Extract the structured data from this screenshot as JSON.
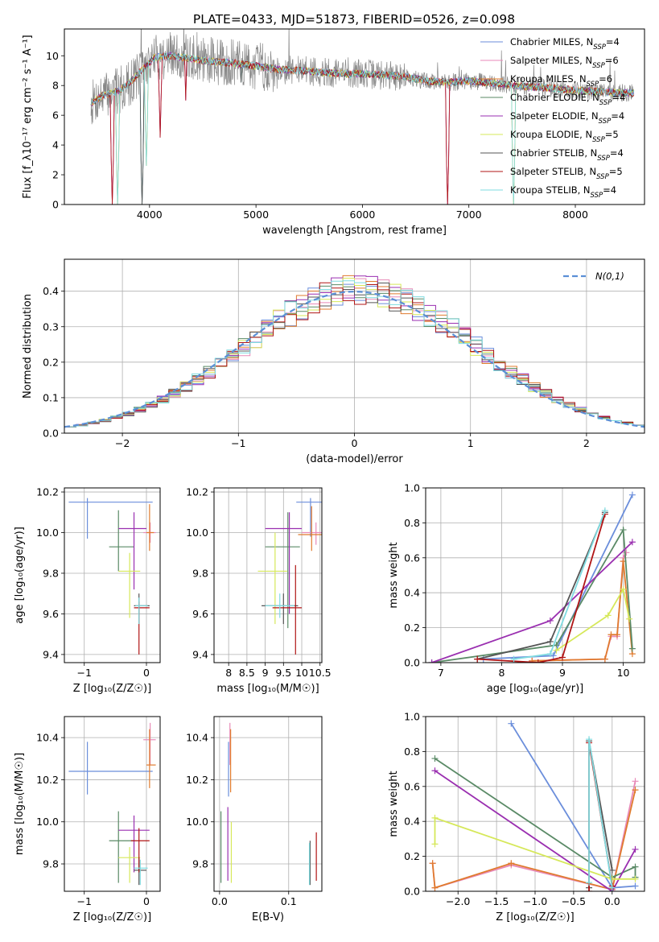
{
  "figure_title": "PLATE=0433, MJD=51873, FIBERID=0526, z=0.098",
  "models": [
    {
      "name": "Chabrier MILES",
      "n_ssp": "4",
      "color": "#6b8edb"
    },
    {
      "name": "Salpeter MILES",
      "n_ssp": "6",
      "color": "#e88ab8"
    },
    {
      "name": "Kroupa MILES",
      "n_ssp": "6",
      "color": "#e07b2e"
    },
    {
      "name": "Chabrier ELODIE",
      "n_ssp": "4",
      "color": "#5a8a66"
    },
    {
      "name": "Salpeter ELODIE",
      "n_ssp": "4",
      "color": "#9a2fb0"
    },
    {
      "name": "Kroupa ELODIE",
      "n_ssp": "5",
      "color": "#d6e85a"
    },
    {
      "name": "Chabrier STELIB",
      "n_ssp": "4",
      "color": "#555555"
    },
    {
      "name": "Salpeter STELIB",
      "n_ssp": "5",
      "color": "#b01515"
    },
    {
      "name": "Kroupa STELIB",
      "n_ssp": "4",
      "color": "#7fdbe0"
    }
  ],
  "chart_data": [
    {
      "id": "spectrum",
      "type": "line",
      "xlabel": "wavelength [Angstrom, rest frame]",
      "ylabel": "Flux [f_λ10⁻¹⁷ erg cm⁻² s⁻¹ A⁻¹]",
      "xlim": [
        3200,
        8650
      ],
      "ylim": [
        0,
        11.8
      ],
      "xticks": [
        4000,
        5000,
        6000,
        7000,
        8000
      ],
      "yticks": [
        0,
        2,
        4,
        6,
        8,
        10
      ],
      "legend": "top-right",
      "data_wavelength_range": [
        3450,
        8550
      ],
      "model_continuum": {
        "x": [
          3450,
          3550,
          3700,
          3800,
          3950,
          4050,
          4200,
          4400,
          4600,
          4800,
          5000,
          5200,
          5400,
          5600,
          5800,
          6000,
          6200,
          6400,
          6600,
          6800,
          7000,
          7200,
          7400,
          7600,
          7800,
          8000,
          8200,
          8400,
          8550
        ],
        "y": [
          6.8,
          7.3,
          7.6,
          8.1,
          9.2,
          9.9,
          10.0,
          9.8,
          9.6,
          9.5,
          9.3,
          9.1,
          9.0,
          8.9,
          8.8,
          8.8,
          8.7,
          8.6,
          8.3,
          8.2,
          8.3,
          8.2,
          8.0,
          7.9,
          7.8,
          7.7,
          7.6,
          7.5,
          7.5
        ]
      },
      "absorption_features": [
        {
          "x": 3650,
          "y": 0
        },
        {
          "x": 3700,
          "y": 0
        },
        {
          "x": 3930,
          "y": 0
        },
        {
          "x": 3970,
          "y": 2.6
        },
        {
          "x": 4100,
          "y": 4.5
        },
        {
          "x": 4340,
          "y": 7.0
        },
        {
          "x": 4860,
          "y": 8.2
        },
        {
          "x": 5175,
          "y": 8.0
        },
        {
          "x": 5890,
          "y": 8.5
        },
        {
          "x": 6563,
          "y": 8.3
        },
        {
          "x": 6800,
          "y": 0
        },
        {
          "x": 7420,
          "y": 0
        }
      ]
    },
    {
      "id": "residuals",
      "type": "line",
      "xlabel": "(data-model)/error",
      "ylabel": "Normed distribution",
      "xlim": [
        -2.5,
        2.5
      ],
      "ylim": [
        0,
        0.49
      ],
      "xticks": [
        -2,
        -1,
        0,
        1,
        2
      ],
      "yticks": [
        0.0,
        0.1,
        0.2,
        0.3,
        0.4
      ],
      "legend_label": "N(0,1)",
      "legend_color": "#5b8fd6",
      "legend": "top-right",
      "bin_width": 0.1,
      "bin_range": [
        -2.5,
        2.5
      ]
    },
    {
      "id": "age_vs_Z",
      "type": "scatter",
      "xlabel": "Z [log₁₀(Z/Z☉)]",
      "ylabel": "age  [log₁₀(age/yr)]",
      "xlim": [
        -1.32,
        0.22
      ],
      "ylim": [
        9.36,
        10.22
      ],
      "xticks": [
        -1,
        0
      ],
      "yticks": [
        9.4,
        9.6,
        9.8,
        10.0,
        10.2
      ],
      "points": [
        {
          "x": -0.95,
          "xlo": -1.25,
          "xhi": 0.1,
          "y": 10.15,
          "ylo": 9.97,
          "yhi": 10.17
        },
        {
          "x": 0.06,
          "xlo": -0.05,
          "xhi": 0.15,
          "y": 10.0,
          "ylo": 9.95,
          "yhi": 10.05
        },
        {
          "x": 0.05,
          "xlo": 0.0,
          "xhi": 0.12,
          "y": 10.0,
          "ylo": 9.91,
          "yhi": 10.14
        },
        {
          "x": -0.45,
          "xlo": -0.6,
          "xhi": -0.2,
          "y": 9.93,
          "ylo": 9.81,
          "yhi": 10.11
        },
        {
          "x": -0.2,
          "xlo": -0.45,
          "xhi": 0.0,
          "y": 10.02,
          "ylo": 9.72,
          "yhi": 10.1
        },
        {
          "x": -0.27,
          "xlo": -0.45,
          "xhi": -0.1,
          "y": 9.81,
          "ylo": 9.58,
          "yhi": 9.9
        },
        {
          "x": -0.12,
          "xlo": -0.2,
          "xhi": 0.05,
          "y": 9.64,
          "ylo": 9.55,
          "yhi": 9.7
        },
        {
          "x": -0.12,
          "xlo": -0.2,
          "xhi": 0.05,
          "y": 9.63,
          "ylo": 9.4,
          "yhi": 9.66
        },
        {
          "x": -0.12,
          "xlo": -0.18,
          "xhi": 0.02,
          "y": 9.64,
          "ylo": 9.55,
          "yhi": 9.68
        }
      ]
    },
    {
      "id": "age_vs_mass",
      "type": "scatter",
      "xlabel": "mass [log₁₀(M/M☉)]",
      "ylabel": "",
      "xlim": [
        7.6,
        10.55
      ],
      "ylim": [
        9.36,
        10.22
      ],
      "xticks": [
        8.0,
        8.5,
        9.0,
        9.5,
        10.0,
        10.5
      ],
      "yticks": [
        9.4,
        9.6,
        9.8,
        10.0,
        10.2
      ],
      "points": [
        {
          "x": 10.24,
          "xlo": 9.85,
          "xhi": 10.55,
          "y": 10.15,
          "ylo": 9.98,
          "yhi": 10.17
        },
        {
          "x": 10.39,
          "xlo": 10.0,
          "xhi": 10.55,
          "y": 10.0,
          "ylo": 9.94,
          "yhi": 10.05
        },
        {
          "x": 10.27,
          "xlo": 9.9,
          "xhi": 10.55,
          "y": 9.99,
          "ylo": 9.91,
          "yhi": 10.13
        },
        {
          "x": 9.62,
          "xlo": 9.0,
          "xhi": 9.95,
          "y": 9.93,
          "ylo": 9.53,
          "yhi": 10.1
        },
        {
          "x": 9.66,
          "xlo": 9.0,
          "xhi": 10.0,
          "y": 10.02,
          "ylo": 9.6,
          "yhi": 10.1
        },
        {
          "x": 9.27,
          "xlo": 8.8,
          "xhi": 9.6,
          "y": 9.81,
          "ylo": 9.55,
          "yhi": 10.0
        },
        {
          "x": 9.5,
          "xlo": 8.9,
          "xhi": 9.9,
          "y": 9.64,
          "ylo": 9.55,
          "yhi": 9.7
        },
        {
          "x": 9.83,
          "xlo": 9.2,
          "xhi": 10.0,
          "y": 9.63,
          "ylo": 9.4,
          "yhi": 9.84
        },
        {
          "x": 9.4,
          "xlo": 9.0,
          "xhi": 9.8,
          "y": 9.64,
          "ylo": 9.58,
          "yhi": 9.7
        }
      ]
    },
    {
      "id": "mass_weight_vs_age",
      "type": "line",
      "xlabel": "age  [log₁₀(age/yr)]",
      "ylabel": "mass weight",
      "xlim": [
        6.75,
        10.35
      ],
      "ylim": [
        0,
        1.0
      ],
      "xticks": [
        7,
        8,
        9,
        10
      ],
      "yticks": [
        0.0,
        0.2,
        0.4,
        0.6,
        0.8,
        1.0
      ],
      "series": [
        {
          "x": [
            7.7,
            8.85,
            10.15
          ],
          "y": [
            0.02,
            0.04,
            0.96
          ]
        },
        {
          "x": [
            8.5,
            9.7,
            9.8,
            9.9,
            10.0,
            10.05
          ],
          "y": [
            0.01,
            0.02,
            0.15,
            0.15,
            0.6,
            0.63
          ]
        },
        {
          "x": [
            8.5,
            9.7,
            9.8,
            9.9,
            10.0,
            10.15
          ],
          "y": [
            0.01,
            0.02,
            0.16,
            0.16,
            0.58,
            0.05
          ]
        },
        {
          "x": [
            6.85,
            8.9,
            10.0,
            10.15
          ],
          "y": [
            0.0,
            0.1,
            0.76,
            0.08
          ]
        },
        {
          "x": [
            6.85,
            8.8,
            10.15
          ],
          "y": [
            0.0,
            0.24,
            0.69
          ]
        },
        {
          "x": [
            8.9,
            9.75,
            10.0,
            10.1
          ],
          "y": [
            0.07,
            0.27,
            0.42,
            0.25
          ]
        },
        {
          "x": [
            7.6,
            8.8,
            9.7
          ],
          "y": [
            0.02,
            0.12,
            0.86
          ]
        },
        {
          "x": [
            7.6,
            8.6,
            9.0,
            9.7
          ],
          "y": [
            0.02,
            0.0,
            0.03,
            0.85
          ]
        },
        {
          "x": [
            8.2,
            8.8,
            9.7
          ],
          "y": [
            0.02,
            0.05,
            0.87
          ]
        }
      ]
    },
    {
      "id": "mass_vs_Z",
      "type": "scatter",
      "xlabel": "Z [log₁₀(Z/Z☉)]",
      "ylabel": "mass [log₁₀(M/M☉)]",
      "xlim": [
        -1.32,
        0.22
      ],
      "ylim": [
        9.67,
        10.5
      ],
      "xticks": [
        -1,
        0
      ],
      "yticks": [
        9.8,
        10.0,
        10.2,
        10.4
      ],
      "points": [
        {
          "x": -0.95,
          "xlo": -1.25,
          "xhi": 0.1,
          "y": 10.24,
          "ylo": 10.13,
          "yhi": 10.38
        },
        {
          "x": 0.06,
          "xlo": -0.05,
          "xhi": 0.15,
          "y": 10.39,
          "ylo": 10.27,
          "yhi": 10.47
        },
        {
          "x": 0.05,
          "xlo": 0.0,
          "xhi": 0.15,
          "y": 10.27,
          "ylo": 10.16,
          "yhi": 10.44
        },
        {
          "x": -0.45,
          "xlo": -0.6,
          "xhi": -0.2,
          "y": 9.91,
          "ylo": 9.71,
          "yhi": 10.05
        },
        {
          "x": -0.2,
          "xlo": -0.45,
          "xhi": 0.05,
          "y": 9.96,
          "ylo": 9.76,
          "yhi": 10.03
        },
        {
          "x": -0.27,
          "xlo": -0.45,
          "xhi": -0.1,
          "y": 9.83,
          "ylo": 9.71,
          "yhi": 9.88
        },
        {
          "x": -0.12,
          "xlo": -0.2,
          "xhi": 0.0,
          "y": 9.77,
          "ylo": 9.7,
          "yhi": 9.83
        },
        {
          "x": -0.12,
          "xlo": -0.25,
          "xhi": 0.05,
          "y": 9.91,
          "ylo": 9.76,
          "yhi": 9.97
        },
        {
          "x": -0.1,
          "xlo": -0.2,
          "xhi": 0.02,
          "y": 9.78,
          "ylo": 9.7,
          "yhi": 9.82
        }
      ]
    },
    {
      "id": "mass_vs_ebv",
      "type": "scatter",
      "xlabel": "E(B-V)",
      "ylabel": "",
      "xlim": [
        -0.008,
        0.148
      ],
      "ylim": [
        9.67,
        10.5
      ],
      "xticks": [
        0.0,
        0.1
      ],
      "yticks": [
        9.8,
        10.0,
        10.2,
        10.4
      ],
      "points": [
        {
          "x": 0.013,
          "xlo": 0.013,
          "xhi": 0.013,
          "y": 10.24,
          "ylo": 10.12,
          "yhi": 10.38
        },
        {
          "x": 0.015,
          "xlo": 0.015,
          "xhi": 0.015,
          "y": 10.39,
          "ylo": 10.27,
          "yhi": 10.47
        },
        {
          "x": 0.016,
          "xlo": 0.016,
          "xhi": 0.016,
          "y": 10.27,
          "ylo": 10.14,
          "yhi": 10.44
        },
        {
          "x": 0.002,
          "xlo": 0.002,
          "xhi": 0.002,
          "y": 9.91,
          "ylo": 9.71,
          "yhi": 10.05
        },
        {
          "x": 0.012,
          "xlo": 0.012,
          "xhi": 0.012,
          "y": 9.96,
          "ylo": 9.72,
          "yhi": 10.07
        },
        {
          "x": 0.017,
          "xlo": 0.017,
          "xhi": 0.017,
          "y": 9.83,
          "ylo": 9.71,
          "yhi": 10.0
        },
        {
          "x": 0.131,
          "xlo": 0.131,
          "xhi": 0.131,
          "y": 9.78,
          "ylo": 9.7,
          "yhi": 9.91
        },
        {
          "x": 0.14,
          "xlo": 0.14,
          "xhi": 0.14,
          "y": 9.83,
          "ylo": 9.72,
          "yhi": 9.95
        },
        {
          "x": 0.13,
          "xlo": 0.13,
          "xhi": 0.13,
          "y": 9.8,
          "ylo": 9.7,
          "yhi": 9.9
        }
      ]
    },
    {
      "id": "mass_weight_vs_Z",
      "type": "line",
      "xlabel": "Z [log₁₀(Z/Z☉)]",
      "ylabel": "mass weight",
      "xlim": [
        -2.42,
        0.42
      ],
      "ylim": [
        0,
        1.0
      ],
      "xticks": [
        -2.0,
        -1.5,
        -1.0,
        -0.5,
        0.0
      ],
      "yticks": [
        0.0,
        0.2,
        0.4,
        0.6,
        0.8,
        1.0
      ],
      "series": [
        {
          "x": [
            -1.31,
            0.0,
            0.3
          ],
          "y": [
            0.96,
            0.02,
            0.03
          ]
        },
        {
          "x": [
            -2.33,
            -2.3,
            -1.31,
            0.0,
            0.3
          ],
          "y": [
            0.16,
            0.02,
            0.15,
            0.01,
            0.63
          ]
        },
        {
          "x": [
            -2.33,
            -2.3,
            -1.31,
            0.0,
            0.3
          ],
          "y": [
            0.16,
            0.02,
            0.16,
            0.01,
            0.58
          ]
        },
        {
          "x": [
            -2.3,
            0.0,
            0.3,
            0.3
          ],
          "y": [
            0.76,
            0.08,
            0.14,
            0.08
          ]
        },
        {
          "x": [
            -2.3,
            0.0,
            0.3
          ],
          "y": [
            0.69,
            0.0,
            0.24
          ]
        },
        {
          "x": [
            -2.3,
            -2.3,
            0.0,
            0.3
          ],
          "y": [
            0.27,
            0.42,
            0.07,
            0.07
          ]
        },
        {
          "x": [
            -0.3,
            -0.3,
            0.0
          ],
          "y": [
            0.02,
            0.86,
            0.12
          ]
        },
        {
          "x": [
            -0.3,
            -0.3,
            0.0,
            0.0
          ],
          "y": [
            0.0,
            0.85,
            0.03,
            0.02
          ]
        },
        {
          "x": [
            -0.3,
            -0.3,
            0.0
          ],
          "y": [
            0.05,
            0.87,
            0.02
          ]
        }
      ]
    }
  ]
}
